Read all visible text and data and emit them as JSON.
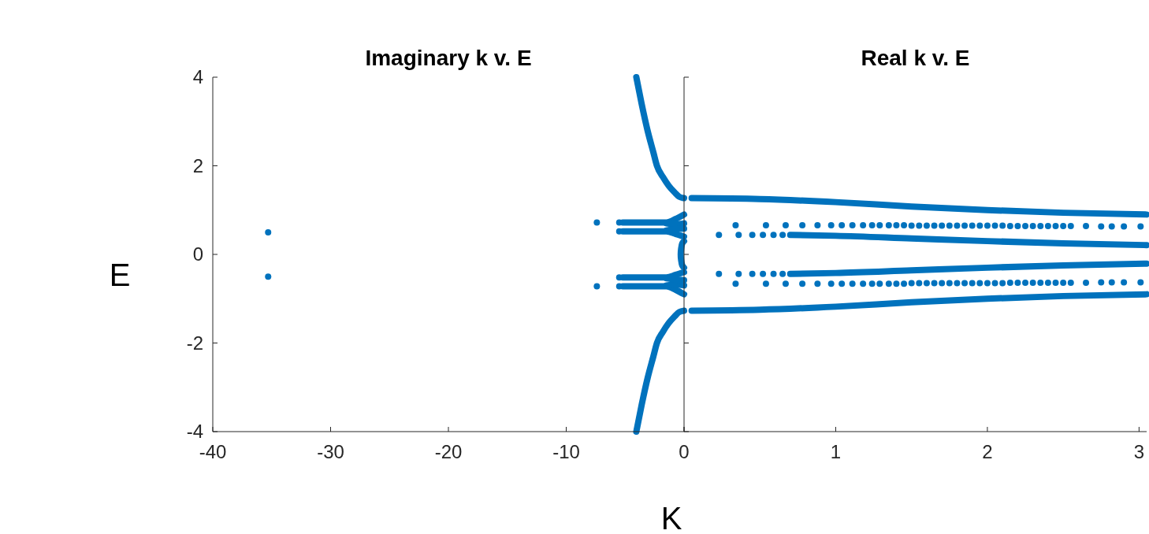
{
  "chart_data": [
    {
      "type": "scatter",
      "title": "Imaginary k v. E",
      "xlabel": "K",
      "ylabel": "E",
      "xlim": [
        -40,
        0
      ],
      "ylim": [
        -4,
        4
      ],
      "xticks": [
        -40,
        -30,
        -20,
        -10,
        {
          "value": 0,
          "label": null
        }
      ],
      "yticks": [
        -4,
        -2,
        0,
        2,
        4
      ],
      "grid": false,
      "series": [
        {
          "color": "#0072bd",
          "marker": "circle",
          "x": [
            -35.3,
            -35.3,
            -7.4,
            -7.4,
            -5.5,
            -5.5,
            -5.5,
            -5.5
          ],
          "values": [
            0.5,
            -0.5,
            0.72,
            -0.72,
            0.72,
            0.52,
            -0.52,
            -0.72
          ]
        },
        {
          "type": "line",
          "color": "#0072bd",
          "x": [
            -4.05,
            -3.6,
            -3.1,
            -2.6,
            -2.3,
            -1.8,
            -1.3,
            -0.8,
            -0.4,
            0
          ],
          "values": [
            4,
            3.4,
            2.8,
            2.3,
            2.0,
            1.75,
            1.55,
            1.4,
            1.3,
            1.27
          ]
        },
        {
          "type": "line",
          "color": "#0072bd",
          "x": [
            -4.05,
            -3.6,
            -3.1,
            -2.6,
            -2.3,
            -1.8,
            -1.3,
            -0.8,
            -0.4,
            0
          ],
          "values": [
            -4,
            -3.4,
            -2.8,
            -2.3,
            -2.0,
            -1.75,
            -1.55,
            -1.4,
            -1.3,
            -1.27
          ]
        },
        {
          "type": "line",
          "color": "#0072bd",
          "x": [
            -5.2,
            -1.5,
            -0.7,
            0
          ],
          "values": [
            0.72,
            0.72,
            0.8,
            0.9
          ]
        },
        {
          "type": "line",
          "color": "#0072bd",
          "x": [
            -5.2,
            -1.5,
            -0.7,
            0
          ],
          "values": [
            0.52,
            0.52,
            0.46,
            0.4
          ]
        },
        {
          "type": "line",
          "color": "#0072bd",
          "x": [
            -1.5,
            -0.7,
            0
          ],
          "values": [
            0.7,
            0.68,
            0.7
          ]
        },
        {
          "type": "line",
          "color": "#0072bd",
          "x": [
            -1.5,
            -0.7,
            0
          ],
          "values": [
            0.54,
            0.57,
            0.58
          ]
        },
        {
          "type": "line",
          "color": "#0072bd",
          "x": [
            -5.2,
            -1.5,
            -0.7,
            0
          ],
          "values": [
            -0.52,
            -0.52,
            -0.46,
            -0.4
          ]
        },
        {
          "type": "line",
          "color": "#0072bd",
          "x": [
            -5.2,
            -1.5,
            -0.7,
            0
          ],
          "values": [
            -0.72,
            -0.72,
            -0.8,
            -0.9
          ]
        },
        {
          "type": "line",
          "color": "#0072bd",
          "x": [
            -1.5,
            -0.7,
            0
          ],
          "values": [
            -0.7,
            -0.68,
            -0.7
          ]
        },
        {
          "type": "line",
          "color": "#0072bd",
          "x": [
            -1.5,
            -0.7,
            0
          ],
          "values": [
            -0.54,
            -0.57,
            -0.58
          ]
        },
        {
          "type": "line",
          "color": "#0072bd",
          "x": [
            0,
            -0.15,
            -0.25,
            -0.28,
            -0.25,
            -0.15,
            0
          ],
          "values": [
            0.3,
            0.25,
            0.12,
            0,
            -0.12,
            -0.25,
            -0.3
          ]
        }
      ]
    },
    {
      "type": "scatter",
      "title": "Real k v. E",
      "xlim": [
        0,
        3.05
      ],
      "ylim": [
        -4,
        4
      ],
      "xticks": [
        0,
        1,
        2,
        3
      ],
      "yticks": [
        -4,
        -2,
        0,
        2,
        4
      ],
      "tick_labels": "x",
      "grid": false,
      "series": [
        {
          "type": "line",
          "color": "#0072bd",
          "x": [
            0.05,
            0.5,
            1,
            1.5,
            2,
            2.5,
            3.05
          ],
          "values": [
            1.27,
            1.25,
            1.18,
            1.08,
            1.0,
            0.94,
            0.9
          ]
        },
        {
          "type": "line",
          "color": "#0072bd",
          "x": [
            0.05,
            0.5,
            1,
            1.5,
            2,
            2.5,
            3.05
          ],
          "values": [
            -1.27,
            -1.25,
            -1.18,
            -1.08,
            -1.0,
            -0.94,
            -0.9
          ]
        },
        {
          "type": "line",
          "color": "#0072bd",
          "x": [
            0.7,
            1,
            1.5,
            2,
            2.5,
            3.05
          ],
          "values": [
            0.44,
            0.42,
            0.36,
            0.3,
            0.25,
            0.21
          ]
        },
        {
          "type": "line",
          "color": "#0072bd",
          "x": [
            0.7,
            1,
            1.5,
            2,
            2.5,
            3.05
          ],
          "values": [
            -0.44,
            -0.42,
            -0.36,
            -0.3,
            -0.25,
            -0.21
          ]
        },
        {
          "color": "#0072bd",
          "marker": "circle",
          "x": [
            0.23,
            0.36,
            0.45,
            0.52,
            0.59,
            0.65,
            0.23,
            0.36,
            0.45,
            0.52,
            0.59,
            0.65
          ],
          "values": [
            0.44,
            0.44,
            0.44,
            0.44,
            0.44,
            0.44,
            -0.44,
            -0.44,
            -0.44,
            -0.44,
            -0.44,
            -0.44
          ]
        },
        {
          "color": "#0072bd",
          "marker": "circle",
          "x": [
            0.34,
            0.54,
            0.67,
            0.78,
            0.88,
            0.97,
            1.04,
            1.11,
            1.18,
            1.24,
            1.29,
            1.35,
            1.4,
            1.45,
            1.5,
            1.55,
            1.6,
            1.65,
            1.7,
            1.75,
            1.8,
            1.85,
            1.9,
            1.95,
            2.0,
            2.05,
            2.1,
            2.15,
            2.2,
            2.25,
            2.3,
            2.35,
            2.4,
            2.45,
            2.5,
            2.55,
            2.65,
            2.75,
            2.82,
            2.9,
            3.01
          ],
          "values": [
            0.66,
            0.66,
            0.66,
            0.66,
            0.66,
            0.66,
            0.66,
            0.66,
            0.66,
            0.66,
            0.66,
            0.66,
            0.66,
            0.66,
            0.65,
            0.65,
            0.65,
            0.65,
            0.65,
            0.65,
            0.65,
            0.65,
            0.65,
            0.65,
            0.65,
            0.65,
            0.65,
            0.64,
            0.64,
            0.64,
            0.64,
            0.64,
            0.64,
            0.64,
            0.64,
            0.64,
            0.64,
            0.63,
            0.63,
            0.63,
            0.63
          ]
        },
        {
          "color": "#0072bd",
          "marker": "circle",
          "x": [
            0.34,
            0.54,
            0.67,
            0.78,
            0.88,
            0.97,
            1.04,
            1.11,
            1.18,
            1.24,
            1.29,
            1.35,
            1.4,
            1.45,
            1.5,
            1.55,
            1.6,
            1.65,
            1.7,
            1.75,
            1.8,
            1.85,
            1.9,
            1.95,
            2.0,
            2.05,
            2.1,
            2.15,
            2.2,
            2.25,
            2.3,
            2.35,
            2.4,
            2.45,
            2.5,
            2.55,
            2.65,
            2.75,
            2.82,
            2.9,
            3.01
          ],
          "values": [
            -0.66,
            -0.66,
            -0.66,
            -0.66,
            -0.66,
            -0.66,
            -0.66,
            -0.66,
            -0.66,
            -0.66,
            -0.66,
            -0.66,
            -0.66,
            -0.66,
            -0.65,
            -0.65,
            -0.65,
            -0.65,
            -0.65,
            -0.65,
            -0.65,
            -0.65,
            -0.65,
            -0.65,
            -0.65,
            -0.65,
            -0.65,
            -0.64,
            -0.64,
            -0.64,
            -0.64,
            -0.64,
            -0.64,
            -0.64,
            -0.64,
            -0.64,
            -0.64,
            -0.63,
            -0.63,
            -0.63,
            -0.63
          ]
        }
      ]
    }
  ]
}
